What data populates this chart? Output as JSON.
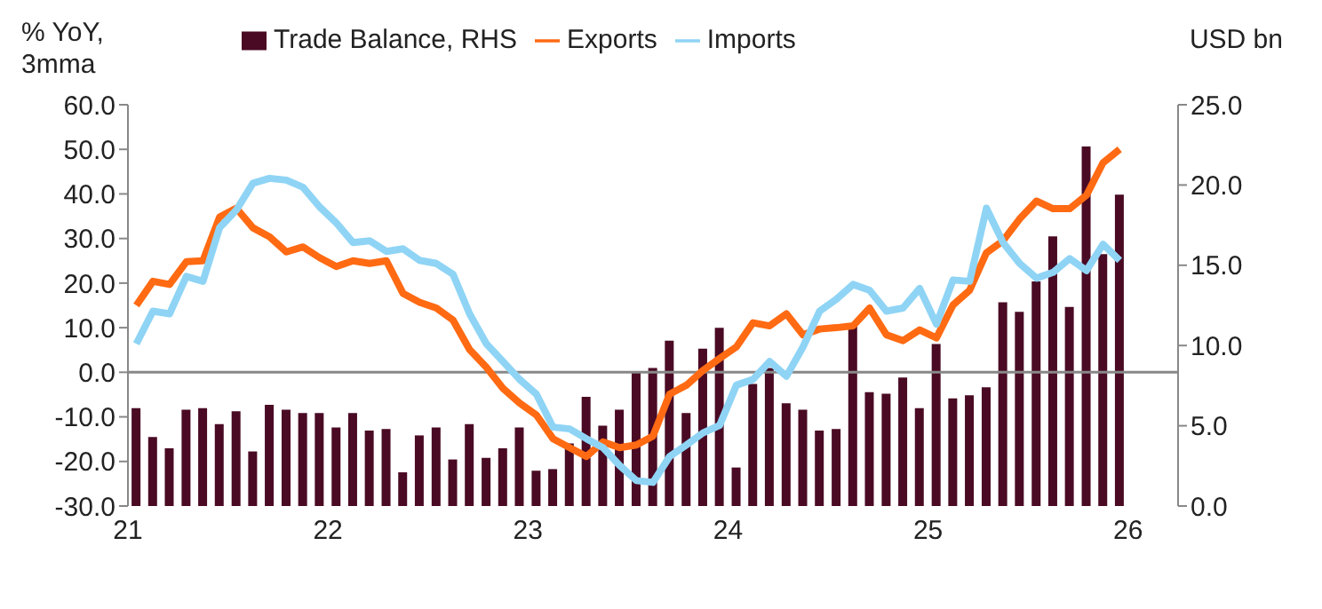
{
  "chart_data": {
    "type": "line",
    "ylabel": "% YoY, 3mma",
    "y2label": "USD bn",
    "x": [
      21.042,
      21.125,
      21.208,
      21.292,
      21.375,
      21.458,
      21.542,
      21.625,
      21.708,
      21.792,
      21.875,
      21.958,
      22.042,
      22.125,
      22.208,
      22.292,
      22.375,
      22.458,
      22.542,
      22.625,
      22.708,
      22.792,
      22.875,
      22.958,
      23.042,
      23.125,
      23.208,
      23.292,
      23.375,
      23.458,
      23.542,
      23.625,
      23.708,
      23.792,
      23.875,
      23.958,
      24.042,
      24.125,
      24.208,
      24.292,
      24.375,
      24.458,
      24.542,
      24.625,
      24.708,
      24.792,
      24.875,
      24.958,
      25.042,
      25.125,
      25.208,
      25.292,
      25.375,
      25.458,
      25.542,
      25.625,
      25.708,
      25.792,
      25.875,
      25.958
    ],
    "series": [
      {
        "name": "Trade Balance, RHS",
        "type": "bar",
        "axis": "y2",
        "color": "#4a0a24",
        "values": [
          6.1,
          4.3,
          3.6,
          6.0,
          6.1,
          5.1,
          5.9,
          3.4,
          6.3,
          6.0,
          5.8,
          5.8,
          4.9,
          5.8,
          4.7,
          4.8,
          2.1,
          4.4,
          4.9,
          2.9,
          5.1,
          3.0,
          3.6,
          4.9,
          2.2,
          2.3,
          3.9,
          6.8,
          5.0,
          6.0,
          8.4,
          8.6,
          10.3,
          5.8,
          9.8,
          11.1,
          2.4,
          7.6,
          8.6,
          6.4,
          6.0,
          4.7,
          4.8,
          11.4,
          7.1,
          7.0,
          8.0,
          6.1,
          10.1,
          6.7,
          6.9,
          7.4,
          12.7,
          12.1,
          14.0,
          16.8,
          12.4,
          22.4,
          15.7,
          19.4
        ]
      },
      {
        "name": "Exports",
        "color": "#ff6a13",
        "values": [
          15,
          20.4,
          19.7,
          24.8,
          25,
          34.8,
          36.8,
          32.4,
          30.4,
          27,
          28.1,
          25.7,
          23.7,
          25,
          24.4,
          25,
          17.7,
          15.7,
          14.4,
          11.7,
          5.1,
          1.1,
          -3.6,
          -6.9,
          -9.6,
          -14.9,
          -16.9,
          -18.9,
          -15.6,
          -16.9,
          -16.3,
          -14.3,
          -4.9,
          -2.9,
          0.4,
          3.1,
          5.7,
          11.1,
          10.4,
          13.1,
          8.4,
          9.7,
          10,
          10.4,
          14.4,
          8.4,
          7.1,
          9.5,
          7.7,
          15.1,
          18.4,
          26.8,
          29.5,
          34.4,
          38.4,
          36.7,
          36.7,
          39.7,
          47,
          50
        ]
      },
      {
        "name": "Imports",
        "color": "#8fd4f5",
        "values": [
          6.4,
          13.7,
          13.1,
          21.5,
          20.4,
          32.4,
          36.4,
          42.4,
          43.5,
          43.1,
          41.5,
          37.1,
          33.5,
          29.1,
          29.5,
          27.1,
          27.7,
          25.1,
          24.4,
          22,
          13.1,
          6.4,
          2.4,
          -1.6,
          -4.9,
          -12.3,
          -12.7,
          -14.9,
          -16.9,
          -20.9,
          -24.3,
          -24.7,
          -18.9,
          -16.3,
          -13.6,
          -11.9,
          -2.9,
          -1.6,
          2.4,
          -0.9,
          5.7,
          13.7,
          16.4,
          19.7,
          18.4,
          13.7,
          14.4,
          18.8,
          10.8,
          20.7,
          20.4,
          36.8,
          29.1,
          24.4,
          21.1,
          22.4,
          25.5,
          22.8,
          28.7,
          25.1
        ]
      }
    ],
    "xlim": [
      21,
      26.25
    ],
    "xticks": [
      21,
      22,
      23,
      24,
      25,
      26
    ],
    "ylim": [
      -30,
      60
    ],
    "yticks": [
      {
        "value": -30,
        "label": "-30.0"
      },
      {
        "value": -20,
        "label": "-20.0"
      },
      {
        "value": -10,
        "label": "-10.0"
      },
      {
        "value": 0,
        "label": "0.0"
      },
      {
        "value": 10,
        "label": "10.0"
      },
      {
        "value": 20,
        "label": "20.0"
      },
      {
        "value": 30,
        "label": "30.0"
      },
      {
        "value": 40,
        "label": "40.0"
      },
      {
        "value": 50,
        "label": "50.0"
      },
      {
        "value": 60,
        "label": "60.0"
      }
    ],
    "y2lim": [
      0,
      25
    ],
    "y2ticks": [
      {
        "value": 0,
        "label": "0.0"
      },
      {
        "value": 5,
        "label": "5.0"
      },
      {
        "value": 10,
        "label": "10.0"
      },
      {
        "value": 15,
        "label": "15.0"
      },
      {
        "value": 20,
        "label": "20.0"
      },
      {
        "value": 25,
        "label": "25.0"
      }
    ],
    "legend": "top",
    "marker": "none",
    "line_style": "solid"
  }
}
